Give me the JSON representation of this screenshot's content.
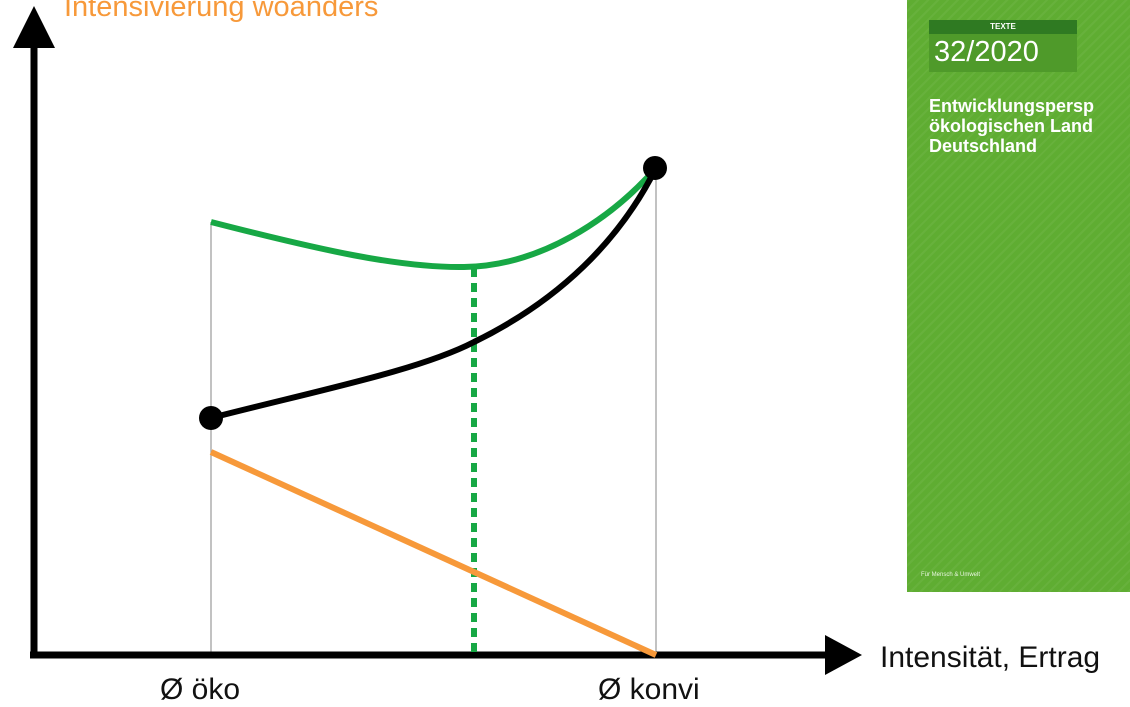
{
  "colors": {
    "axis": "#000000",
    "green": "#17a845",
    "orange": "#f7993a",
    "black": "#000000",
    "guide": "#999999",
    "cover": "#5fad32"
  },
  "labels": {
    "top": "Intensivierung woanders",
    "x_axis": "Intensität, Ertrag",
    "tick_oeko": "Ø öko",
    "tick_konvi": "Ø konvi"
  },
  "cover": {
    "series": "TEXTE",
    "number": "32/2020",
    "title_lines": [
      "Entwicklungspersp",
      "ökologischen Land",
      "Deutschland"
    ],
    "footer": "Für Mensch & Umwelt"
  }
}
